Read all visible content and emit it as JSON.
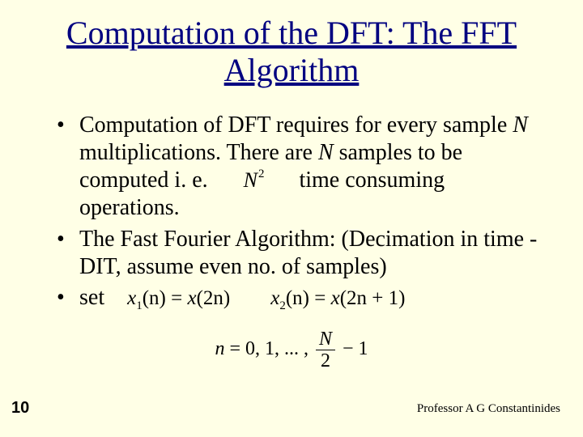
{
  "background_color": "#ffffe6",
  "title": {
    "text": "Computation of the  DFT: The FFT Algorithm",
    "color": "#000080",
    "fontsize": 40,
    "underline": true
  },
  "bullets": [
    {
      "parts": {
        "text1": "Computation of DFT requires for every sample ",
        "var1": "N",
        "text2": " multiplications.  There are ",
        "var2": "N",
        "text3": " samples to be computed i. e.",
        "nsq_base": "N",
        "nsq_exp": "2",
        "text4": "time consuming operations."
      }
    },
    {
      "text": "The Fast Fourier Algorithm: (Decimation in time  -  DIT, assume even no. of samples)"
    },
    {
      "label": "set",
      "eq": {
        "x1_lhs_var": "x",
        "x1_lhs_sub": "1",
        "x1_lhs_arg": "(n)",
        "eq_sign1": " = ",
        "x1_rhs_var": "x",
        "x1_rhs_arg": "(2n)",
        "gap": "        ",
        "x2_lhs_var": "x",
        "x2_lhs_sub": "2",
        "x2_lhs_arg": "(n)",
        "eq_sign2": " = ",
        "x2_rhs_var": "x",
        "x2_rhs_arg": "(2n + 1)"
      },
      "range": {
        "prefix": "n = 0, 1, ... , ",
        "frac_num": "N",
        "frac_den": "2",
        "suffix": " − 1"
      }
    }
  ],
  "page_number": "10",
  "footer": "Professor A G Constantinides",
  "body_fontsize": 28,
  "body_color": "#000000"
}
